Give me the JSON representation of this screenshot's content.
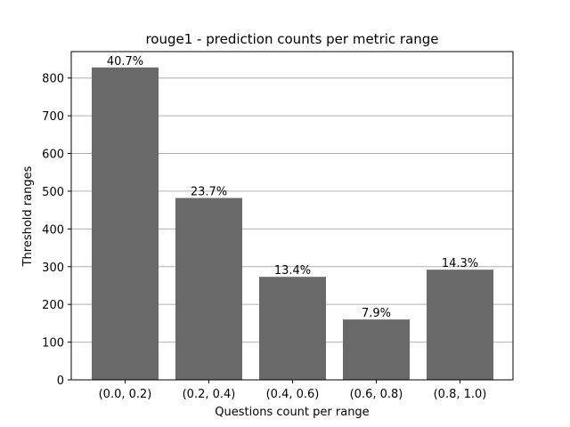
{
  "chart_data": {
    "type": "bar",
    "title": "rouge1 - prediction counts per metric range",
    "xlabel": "Questions count per range",
    "ylabel": "Threshold ranges",
    "categories": [
      "(0.0, 0.2)",
      "(0.2, 0.4)",
      "(0.4, 0.6)",
      "(0.6, 0.8)",
      "(0.8, 1.0)"
    ],
    "values": [
      828,
      482,
      273,
      160,
      292
    ],
    "data_labels": [
      "40.7%",
      "23.7%",
      "13.4%",
      "7.9%",
      "14.3%"
    ],
    "ylim": [
      0,
      870
    ],
    "yticks": [
      0,
      100,
      200,
      300,
      400,
      500,
      600,
      700,
      800
    ],
    "grid": {
      "y": true,
      "x": false
    },
    "colors": {
      "bar": "#696969",
      "grid": "#b0b0b0",
      "axis": "#000000"
    }
  }
}
